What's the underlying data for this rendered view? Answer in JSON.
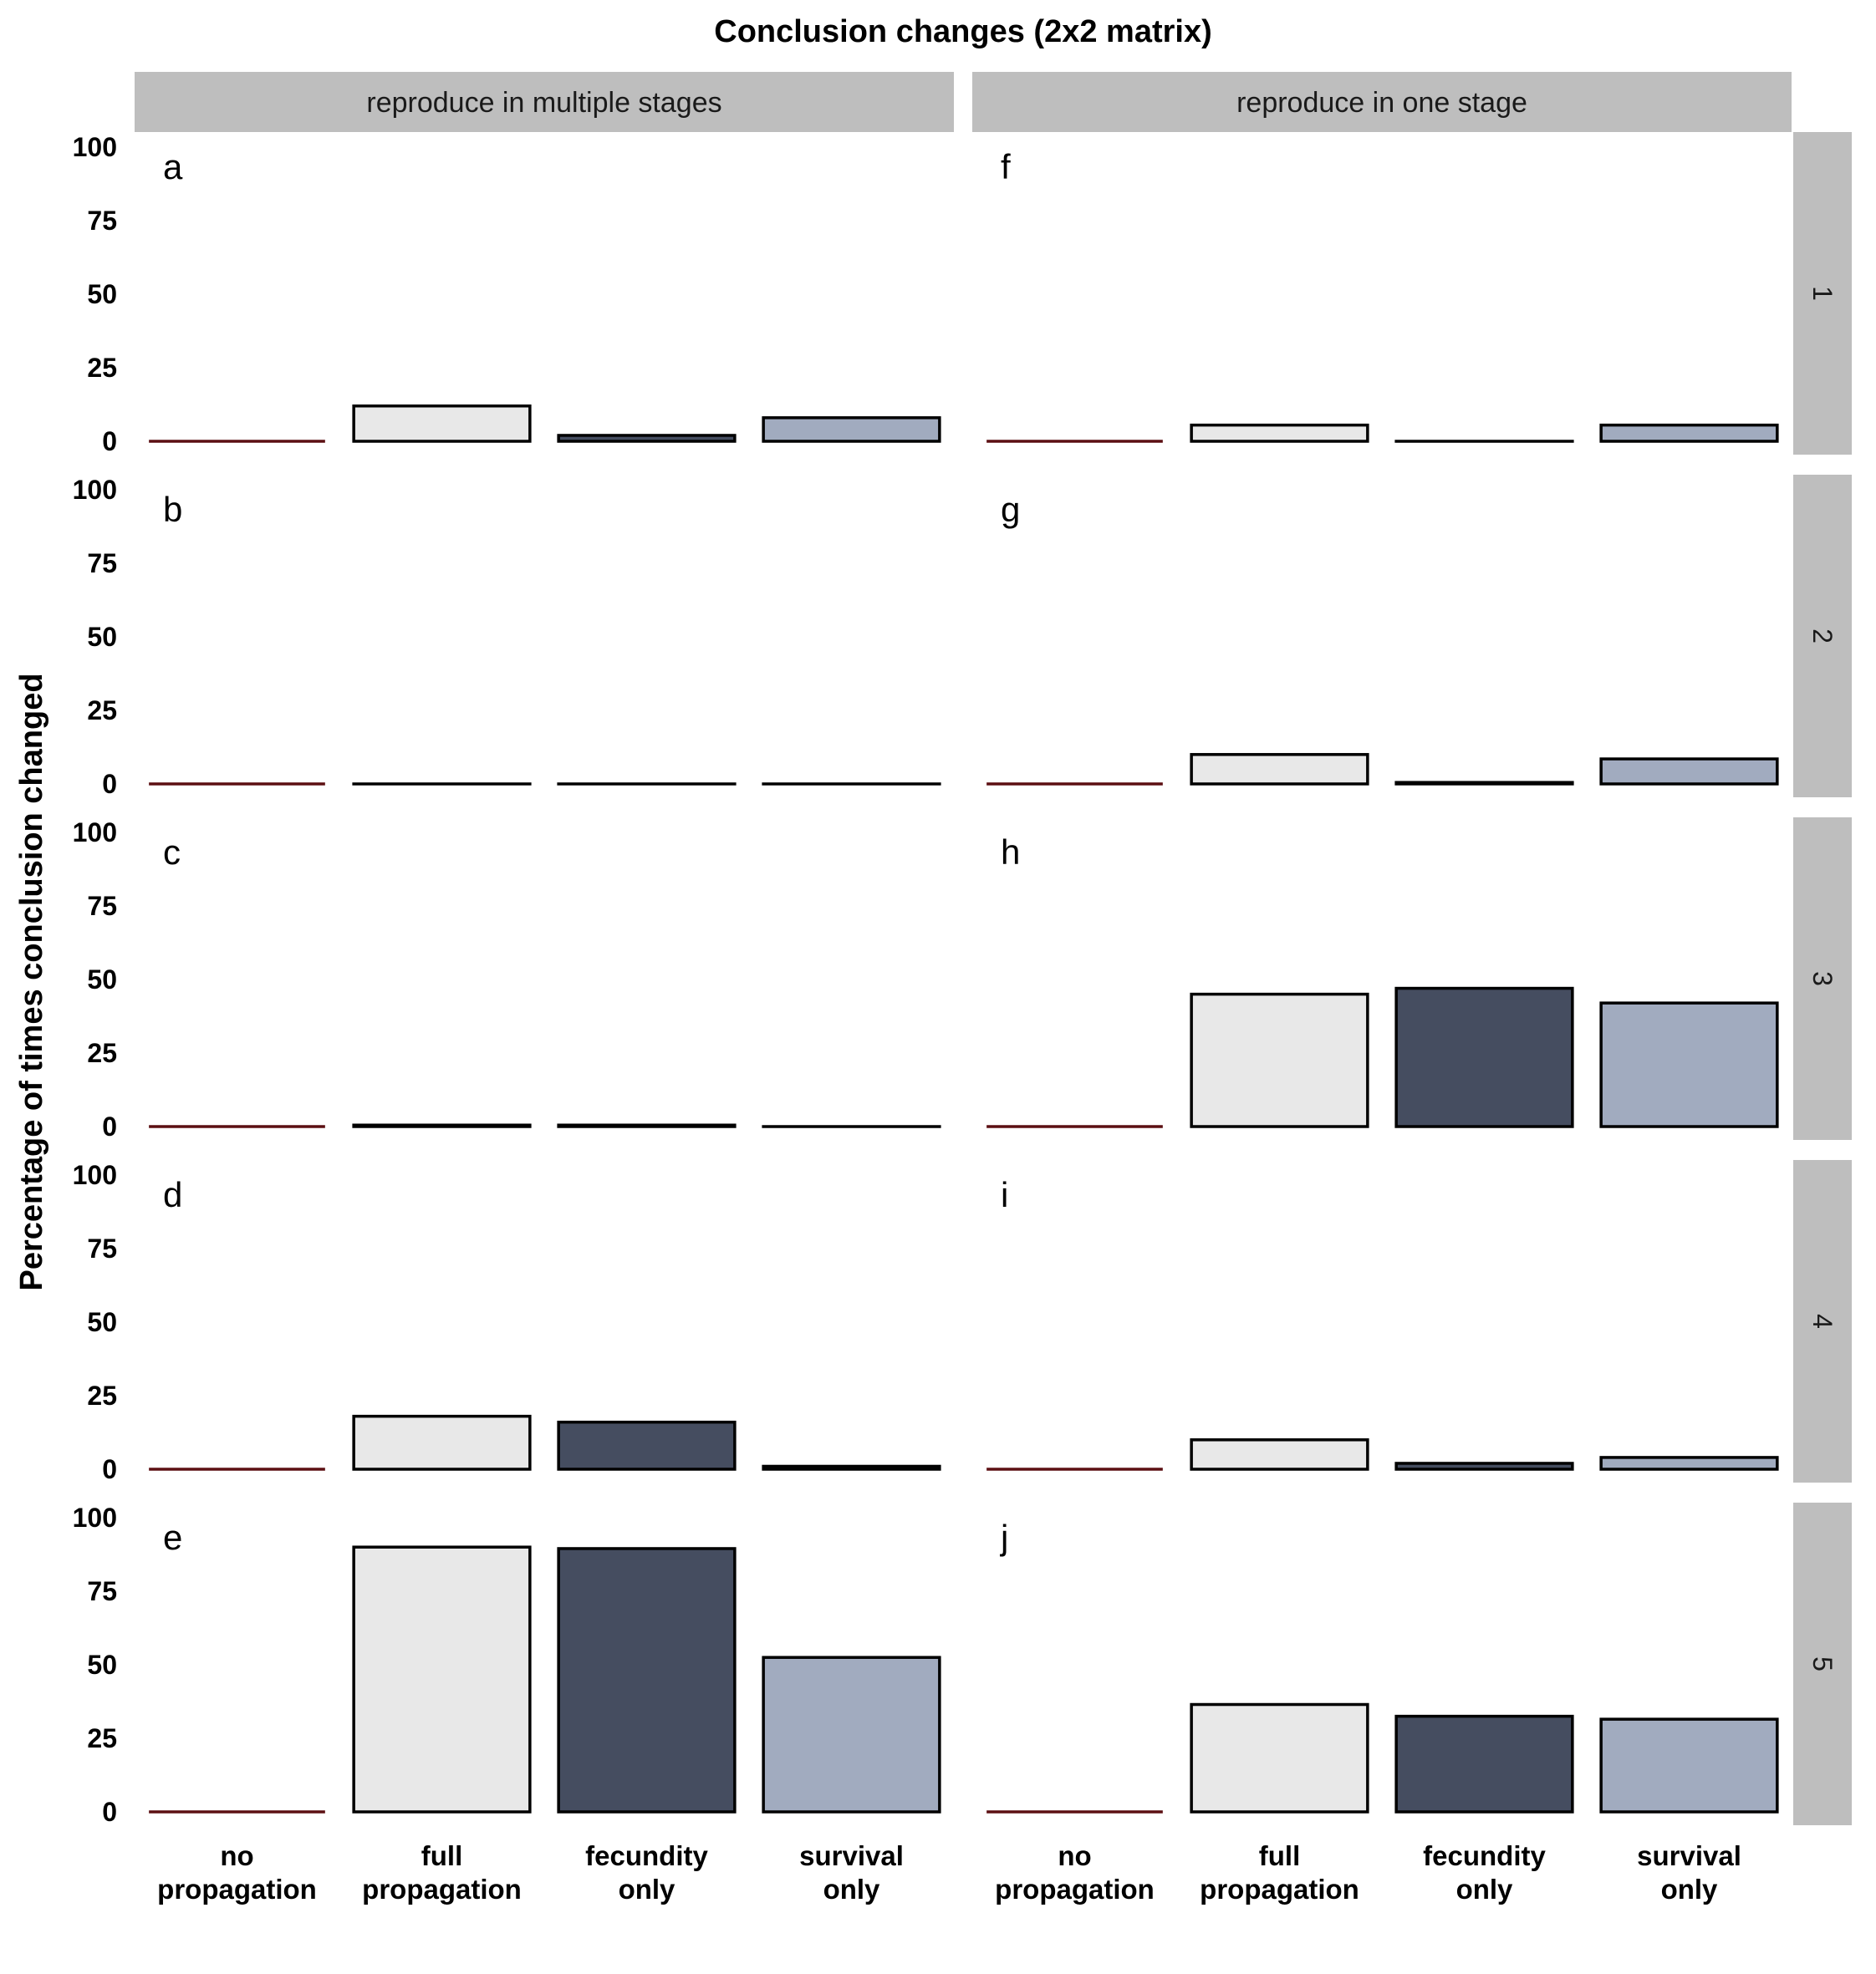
{
  "chart_data": {
    "type": "bar",
    "title": "Conclusion changes (2x2 matrix)",
    "ylabel": "Percentage of times conclusion changed",
    "xlabel": "",
    "ylim": [
      0,
      100
    ],
    "yticks": [
      0,
      25,
      50,
      75,
      100
    ],
    "categories": [
      {
        "line1": "no",
        "line2": "propagation"
      },
      {
        "line1": "full",
        "line2": "propagation"
      },
      {
        "line1": "fecundity",
        "line2": "only"
      },
      {
        "line1": "survival",
        "line2": "only"
      }
    ],
    "column_facets": [
      "reproduce in multiple stages",
      "reproduce in one stage"
    ],
    "row_facets": [
      "1",
      "2",
      "3",
      "4",
      "5"
    ],
    "colors": {
      "no propagation": "#5c0f12",
      "full propagation": "#e8e8e8",
      "fecundity only": "#454d60",
      "survival only": "#a1abbf",
      "strip": "#bebebe",
      "bar_outline": "#000000"
    },
    "grid": false,
    "legend": "none",
    "panels": [
      {
        "letter": "a",
        "row": 1,
        "column": "reproduce in multiple stages",
        "values": [
          0,
          12,
          2,
          8
        ]
      },
      {
        "letter": "b",
        "row": 2,
        "column": "reproduce in multiple stages",
        "values": [
          0,
          0,
          0,
          0
        ]
      },
      {
        "letter": "c",
        "row": 3,
        "column": "reproduce in multiple stages",
        "values": [
          0,
          0.5,
          0.5,
          0
        ]
      },
      {
        "letter": "d",
        "row": 4,
        "column": "reproduce in multiple stages",
        "values": [
          0,
          18,
          16,
          1
        ]
      },
      {
        "letter": "e",
        "row": 5,
        "column": "reproduce in multiple stages",
        "values": [
          0,
          90,
          89.5,
          52.5
        ]
      },
      {
        "letter": "f",
        "row": 1,
        "column": "reproduce in one stage",
        "values": [
          0,
          5.5,
          0,
          5.5
        ]
      },
      {
        "letter": "g",
        "row": 2,
        "column": "reproduce in one stage",
        "values": [
          0,
          10,
          0.5,
          8.5
        ]
      },
      {
        "letter": "h",
        "row": 3,
        "column": "reproduce in one stage",
        "values": [
          0,
          45,
          47,
          42
        ]
      },
      {
        "letter": "i",
        "row": 4,
        "column": "reproduce in one stage",
        "values": [
          0,
          10,
          2,
          4
        ]
      },
      {
        "letter": "j",
        "row": 5,
        "column": "reproduce in one stage",
        "values": [
          0,
          36.5,
          32.5,
          31.5
        ]
      }
    ]
  }
}
